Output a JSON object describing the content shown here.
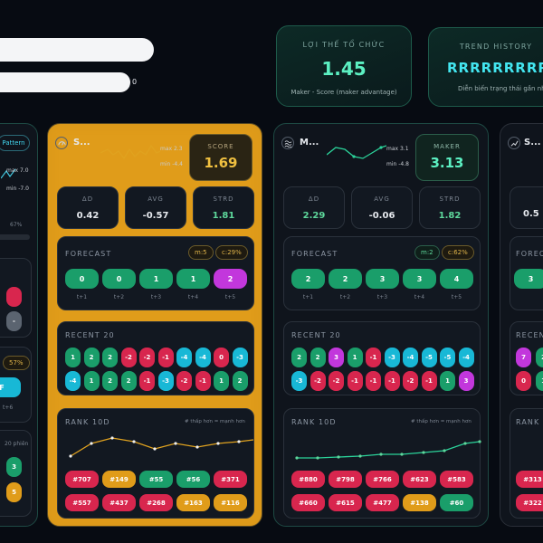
{
  "stats": [
    {
      "title": "LỢI THẾ TỔ CHỨC",
      "value": "1.45",
      "sub": "Maker - Score (maker advantage)"
    },
    {
      "title": "TREND HISTORY",
      "value": "RRRRRRRRR",
      "sub": "Diễn biến trạng thái gần nh"
    }
  ],
  "input_suffix": "0",
  "colors": {
    "green": "#1a9e6a",
    "red": "#d8264e",
    "cyan": "#18b8d6",
    "purple": "#c237dc",
    "gold": "#e09c1a",
    "line_gold": "#e0a21f",
    "line_teal": "#2bd39a"
  },
  "left_partial": {
    "pattern": "Pattern",
    "max": "max 7.0",
    "min": "min -7.0",
    "pct": "67%",
    "tag": "57%",
    "f": "F",
    "small": "t+6",
    "note": "20 phiên",
    "chips": [
      "3",
      "5"
    ]
  },
  "panels": [
    {
      "id": "score",
      "title": "S...",
      "max": "max 2.3",
      "min": "min -4.4",
      "box_label": "SCORE",
      "box_value": "1.69",
      "metrics": [
        {
          "label": "ΔD",
          "value": "0.42"
        },
        {
          "label": "AVG",
          "value": "-0.57"
        },
        {
          "label": "STRD",
          "value": "1.81"
        }
      ],
      "forecast_label": "FORECAST",
      "forecast_tags": [
        "m:5",
        "c:29%"
      ],
      "forecast": [
        {
          "v": "0",
          "c": "green",
          "t": "t+1"
        },
        {
          "v": "0",
          "c": "green",
          "t": "t+2"
        },
        {
          "v": "1",
          "c": "green",
          "t": "t+3"
        },
        {
          "v": "1",
          "c": "green",
          "t": "t+4"
        },
        {
          "v": "2",
          "c": "purple",
          "t": "t+5"
        }
      ],
      "recent_label": "RECENT 20",
      "recent": [
        [
          "1",
          "green"
        ],
        [
          "2",
          "green"
        ],
        [
          "2",
          "green"
        ],
        [
          "-2",
          "red"
        ],
        [
          "-2",
          "red"
        ],
        [
          "-1",
          "red"
        ],
        [
          "-4",
          "cyan"
        ],
        [
          "-4",
          "cyan"
        ],
        [
          "0",
          "red"
        ],
        [
          "-3",
          "cyan"
        ],
        [
          "-4",
          "cyan"
        ],
        [
          "1",
          "green"
        ],
        [
          "2",
          "green"
        ],
        [
          "2",
          "green"
        ],
        [
          "-1",
          "red"
        ],
        [
          "-3",
          "cyan"
        ],
        [
          "-2",
          "red"
        ],
        [
          "-1",
          "red"
        ],
        [
          "1",
          "green"
        ],
        [
          "2",
          "green"
        ]
      ],
      "rank_label": "RANK 10D",
      "rank_note": "# thấp hơn = mạnh hơn",
      "rank": [
        [
          "#707",
          "red"
        ],
        [
          "#149",
          "gold"
        ],
        [
          "#55",
          "green"
        ],
        [
          "#56",
          "green"
        ],
        [
          "#371",
          "red"
        ],
        [
          "#557",
          "red"
        ],
        [
          "#437",
          "red"
        ],
        [
          "#268",
          "red"
        ],
        [
          "#163",
          "gold"
        ],
        [
          "#116",
          "gold"
        ]
      ]
    },
    {
      "id": "maker",
      "title": "M...",
      "max": "max 3.1",
      "min": "min -4.8",
      "box_label": "MAKER",
      "box_value": "3.13",
      "metrics": [
        {
          "label": "ΔD",
          "value": "2.29"
        },
        {
          "label": "AVG",
          "value": "-0.06"
        },
        {
          "label": "STRD",
          "value": "1.82"
        }
      ],
      "forecast_label": "FORECAST",
      "forecast_tags": [
        "m:2",
        "c:62%"
      ],
      "forecast": [
        {
          "v": "2",
          "c": "green",
          "t": "t+1"
        },
        {
          "v": "2",
          "c": "green",
          "t": "t+2"
        },
        {
          "v": "3",
          "c": "green",
          "t": "t+3"
        },
        {
          "v": "3",
          "c": "green",
          "t": "t+4"
        },
        {
          "v": "4",
          "c": "green",
          "t": "t+5"
        }
      ],
      "recent_label": "RECENT 20",
      "recent": [
        [
          "2",
          "green"
        ],
        [
          "2",
          "green"
        ],
        [
          "3",
          "purple"
        ],
        [
          "1",
          "green"
        ],
        [
          "-1",
          "red"
        ],
        [
          "-3",
          "cyan"
        ],
        [
          "-4",
          "cyan"
        ],
        [
          "-5",
          "cyan"
        ],
        [
          "-5",
          "cyan"
        ],
        [
          "-4",
          "cyan"
        ],
        [
          "-3",
          "cyan"
        ],
        [
          "-2",
          "red"
        ],
        [
          "-2",
          "red"
        ],
        [
          "-1",
          "red"
        ],
        [
          "-1",
          "red"
        ],
        [
          "-1",
          "red"
        ],
        [
          "-2",
          "red"
        ],
        [
          "-1",
          "red"
        ],
        [
          "1",
          "green"
        ],
        [
          "3",
          "purple"
        ]
      ],
      "rank_label": "RANK 10D",
      "rank_note": "# thấp hơn = mạnh hơn",
      "rank": [
        [
          "#880",
          "red"
        ],
        [
          "#798",
          "red"
        ],
        [
          "#766",
          "red"
        ],
        [
          "#623",
          "red"
        ],
        [
          "#583",
          "red"
        ],
        [
          "#660",
          "red"
        ],
        [
          "#615",
          "red"
        ],
        [
          "#477",
          "red"
        ],
        [
          "#138",
          "gold"
        ],
        [
          "#60",
          "green"
        ]
      ]
    }
  ],
  "right_partial": {
    "title": "S...",
    "metric": "0.5",
    "forecast_label": "FORECAS",
    "fc": "3",
    "recent_label": "RECEN",
    "recent": [
      [
        "7",
        "purple"
      ],
      [
        "2",
        "green"
      ],
      [
        "0",
        "red"
      ],
      [
        "1",
        "green"
      ]
    ],
    "rank_label": "RANK",
    "rank": [
      [
        "#313",
        "red"
      ],
      [
        "#322",
        "red"
      ]
    ]
  }
}
